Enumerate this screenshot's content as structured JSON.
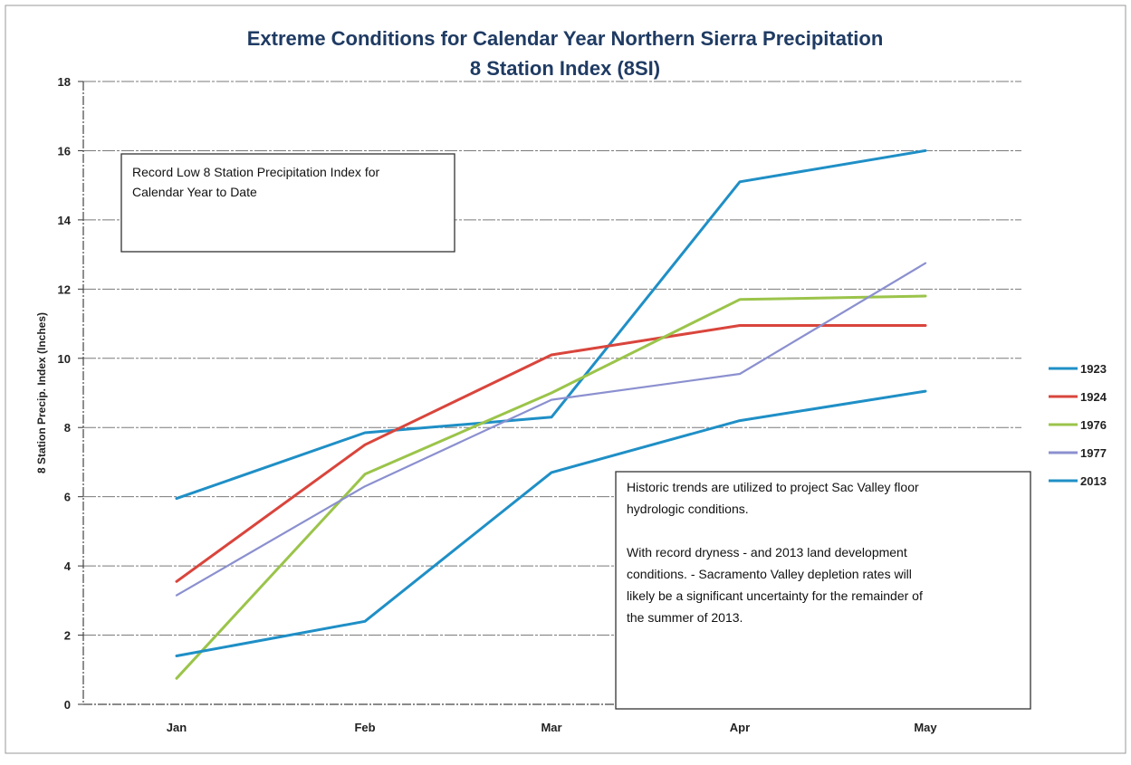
{
  "chart_data": {
    "type": "line",
    "title": "Extreme Conditions for Calendar Year Northern Sierra Precipitation",
    "subtitle": "8 Station Index (8SI)",
    "xlabel": "",
    "ylabel": "8 Station Precip. Index (Inches)",
    "categories": [
      "Jan",
      "Feb",
      "Mar",
      "Apr",
      "May"
    ],
    "ylim": [
      0,
      18
    ],
    "yticks": [
      0,
      2,
      4,
      6,
      8,
      10,
      12,
      14,
      16,
      18
    ],
    "grid": "horizontal",
    "legend_position": "right",
    "series": [
      {
        "name": "1923",
        "values": [
          5.95,
          7.85,
          8.3,
          15.1,
          16.0
        ],
        "color": "#1f8fc6",
        "width": 3
      },
      {
        "name": "1924",
        "values": [
          3.55,
          7.5,
          10.1,
          10.95,
          10.95
        ],
        "color": "#d9453c",
        "width": 3
      },
      {
        "name": "1976",
        "values": [
          0.75,
          6.65,
          9.0,
          11.7,
          11.8
        ],
        "color": "#9bc44a",
        "width": 3
      },
      {
        "name": "1977",
        "values": [
          3.15,
          6.3,
          8.8,
          9.55,
          12.75
        ],
        "color": "#8b90cf",
        "width": 2.2
      },
      {
        "name": "2013",
        "values": [
          1.4,
          2.4,
          6.7,
          8.2,
          9.05
        ],
        "color": "#1f8fc6",
        "width": 3
      }
    ],
    "annotations": [
      {
        "id": "record",
        "lines": [
          "Record Low 8 Station Precipitation Index for",
          "Calendar Year to Date"
        ]
      },
      {
        "id": "historic",
        "lines": [
          "Historic  trends are utilized to project  Sac Valley  floor",
          "hydrologic conditions.",
          "",
          "With record dryness - and 2013 land development",
          "conditions. -  Sacramento Valley depletion rates  will",
          "likely  be a  significant uncertainty for the remainder of",
          "the  summer of 2013."
        ]
      }
    ]
  }
}
